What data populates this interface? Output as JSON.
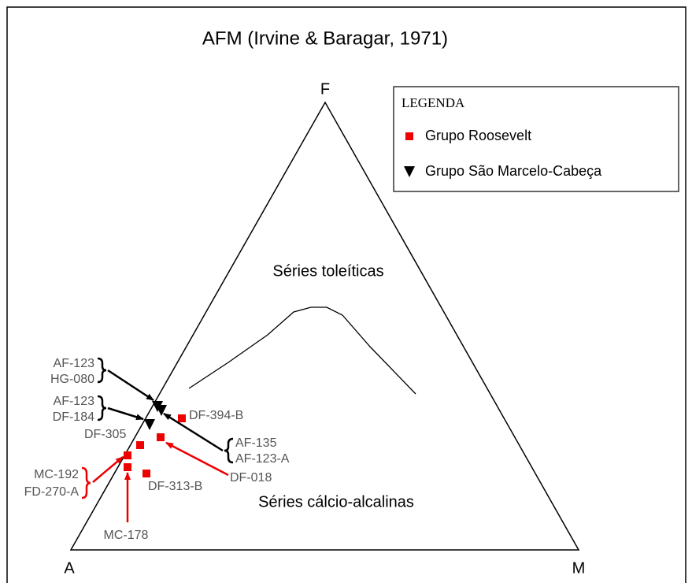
{
  "title": "AFM (Irvine & Baragar, 1971)",
  "vertices": {
    "a": "A",
    "f": "F",
    "m": "M"
  },
  "legend": {
    "title": "LEGENDA",
    "items": [
      "Grupo Roosevelt",
      "Grupo São Marcelo-Cabeça"
    ]
  },
  "regions": [
    "Séries toleíticas",
    "Séries cálcio-alcalinas"
  ],
  "samples": [
    "AF-123",
    "HG-080",
    "AF-123",
    "DF-184",
    "DF-305",
    "DF-394-B",
    "AF-135",
    "AF-123-A",
    "DF-018",
    "DF-313-B",
    "MC-192",
    "FD-270-A",
    "MC-178"
  ]
}
